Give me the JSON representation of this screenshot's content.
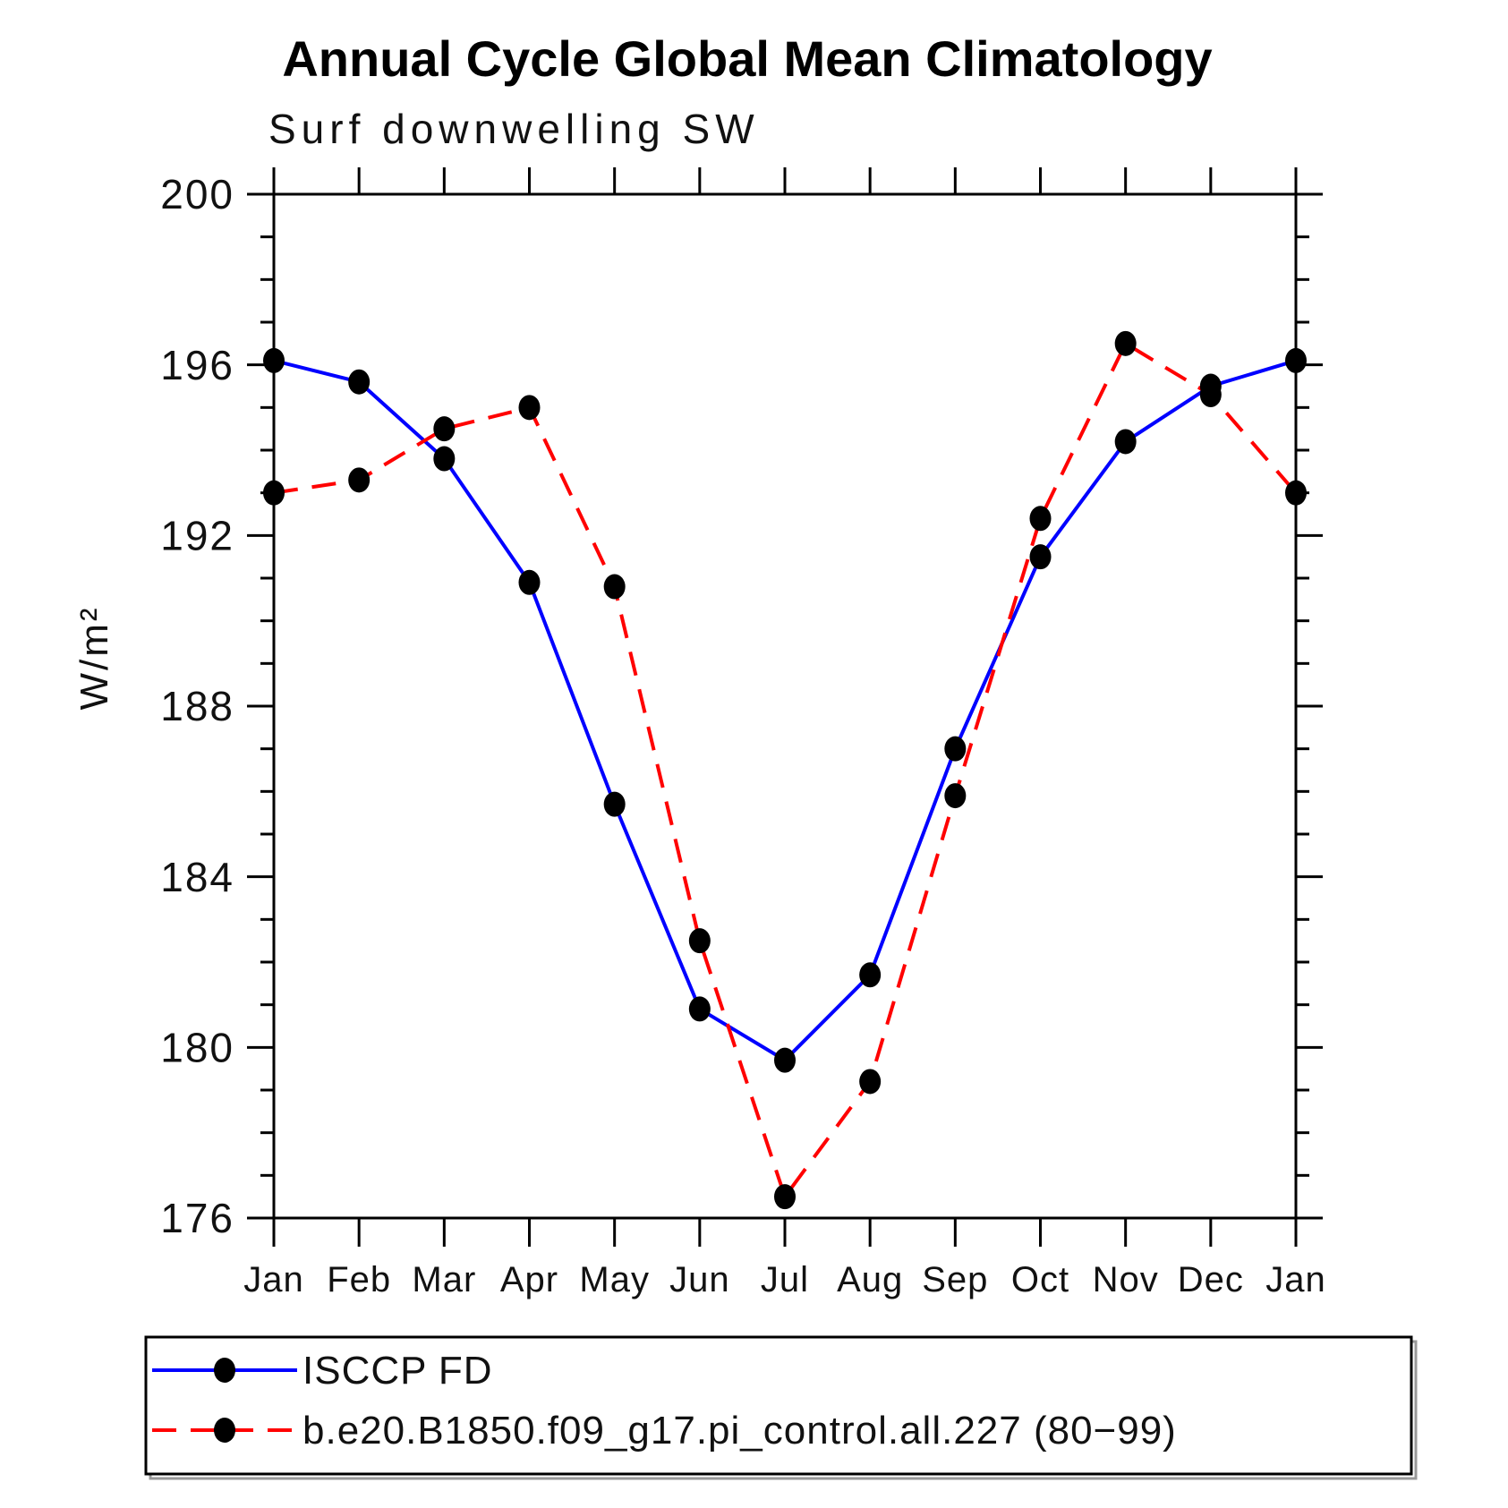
{
  "title": "Annual Cycle Global Mean Climatology",
  "subtitle": "Surf downwelling SW",
  "chart_data": {
    "type": "line",
    "title": "Annual Cycle Global Mean Climatology",
    "subtitle": "Surf downwelling SW",
    "ylabel": "W/m²",
    "categories": [
      "Jan",
      "Feb",
      "Mar",
      "Apr",
      "May",
      "Jun",
      "Jul",
      "Aug",
      "Sep",
      "Oct",
      "Nov",
      "Dec",
      "Jan"
    ],
    "ylim": [
      176,
      200
    ],
    "ytick_major_step": 4,
    "ytick_minor_step": 1,
    "ytick_labels": [
      "176",
      "180",
      "184",
      "188",
      "192",
      "196",
      "200"
    ],
    "grid": false,
    "legend_position": "bottom",
    "marker": "filled-circle",
    "marker_color": "#000000",
    "series": [
      {
        "name": "ISCCP FD",
        "color": "#0000ff",
        "style": "solid",
        "values": [
          196.1,
          195.6,
          193.8,
          190.9,
          185.7,
          180.9,
          179.7,
          181.7,
          187.0,
          191.5,
          194.2,
          195.5,
          196.1
        ]
      },
      {
        "name": "b.e20.B1850.f09_g17.pi_control.all.227 (80−99)",
        "color": "#ff0000",
        "style": "dashed",
        "values": [
          193.0,
          193.3,
          194.5,
          195.0,
          190.8,
          182.5,
          176.5,
          179.2,
          185.9,
          192.4,
          196.5,
          195.3,
          193.0
        ]
      }
    ]
  }
}
